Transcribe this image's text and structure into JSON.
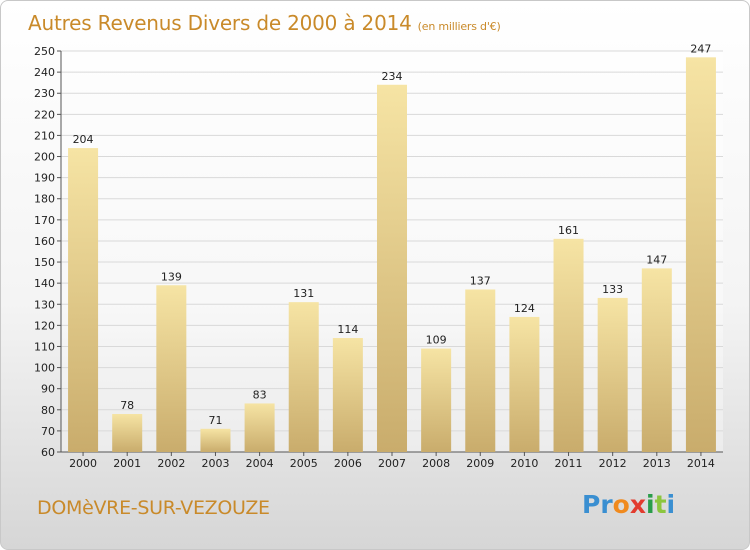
{
  "title": "Autres Revenus Divers de 2000 à 2014",
  "subtitle": "(en milliers d'€)",
  "city": "DOMèVRE-SUR-VEZOUZE",
  "logo": {
    "letters": [
      "P",
      "r",
      "o",
      "x",
      "i",
      "t",
      "i"
    ],
    "colors": [
      "#3a8fd1",
      "#3a8fd1",
      "#f08a1e",
      "#e23b2e",
      "#2a9d4a",
      "#8cc63f",
      "#3a8fd1"
    ]
  },
  "colors": {
    "bar_light": "#f6e4a4",
    "bar_dark": "#c9ac6c",
    "grid": "#d9d9d9",
    "axis": "#555555"
  },
  "chart_data": {
    "type": "bar",
    "categories": [
      "2000",
      "2001",
      "2002",
      "2003",
      "2004",
      "2005",
      "2006",
      "2007",
      "2008",
      "2009",
      "2010",
      "2011",
      "2012",
      "2013",
      "2014"
    ],
    "values": [
      204,
      78,
      139,
      71,
      83,
      131,
      114,
      234,
      109,
      137,
      124,
      161,
      133,
      147,
      247
    ],
    "title": "Autres Revenus Divers de 2000 à 2014",
    "subtitle": "(en milliers d'€)",
    "xlabel": "",
    "ylabel": "",
    "ylim": [
      60,
      250
    ],
    "yticks": [
      60,
      70,
      80,
      90,
      100,
      110,
      120,
      130,
      140,
      150,
      160,
      170,
      180,
      190,
      200,
      210,
      220,
      230,
      240,
      250
    ],
    "grid": true,
    "legend": "none"
  }
}
